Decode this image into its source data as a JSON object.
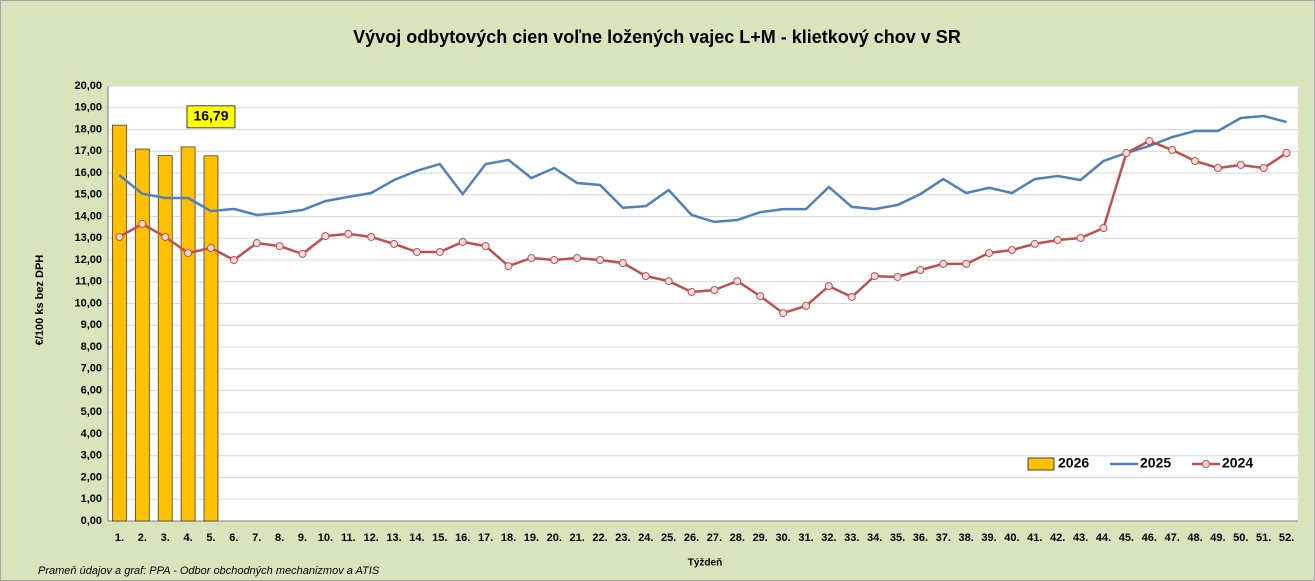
{
  "chart_data": {
    "type": "combo",
    "title": "Vývoj odbytových cien voľne ložených vajec L+M - klietkový chov v SR",
    "y_label": "€/100 ks bez DPH",
    "x_label": "Týždeň",
    "source": "Prameň údajov a graf: PPA - Odbor obchodných mechanizmov a ATIS",
    "categories": [
      "1.",
      "2.",
      "3.",
      "4.",
      "5.",
      "6.",
      "7.",
      "8.",
      "9.",
      "10.",
      "11.",
      "12.",
      "13.",
      "14.",
      "15.",
      "16.",
      "17.",
      "18.",
      "19.",
      "20.",
      "21.",
      "22.",
      "23.",
      "24.",
      "25.",
      "26.",
      "27.",
      "28.",
      "29.",
      "30.",
      "31.",
      "32.",
      "33.",
      "34.",
      "35.",
      "36.",
      "37.",
      "38.",
      "39.",
      "40.",
      "41.",
      "42.",
      "43.",
      "44.",
      "45.",
      "46.",
      "47.",
      "48.",
      "49.",
      "50.",
      "51.",
      "52."
    ],
    "ylim": [
      0,
      20
    ],
    "yticks": [
      {
        "value": 0,
        "label": "0,00"
      },
      {
        "value": 1,
        "label": "1,00"
      },
      {
        "value": 2,
        "label": "2,00"
      },
      {
        "value": 3,
        "label": "3,00"
      },
      {
        "value": 4,
        "label": "4,00"
      },
      {
        "value": 5,
        "label": "5,00"
      },
      {
        "value": 6,
        "label": "6,00"
      },
      {
        "value": 7,
        "label": "7,00"
      },
      {
        "value": 8,
        "label": "8,00"
      },
      {
        "value": 9,
        "label": "9,00"
      },
      {
        "value": 10,
        "label": "10,00"
      },
      {
        "value": 11,
        "label": "11,00"
      },
      {
        "value": 12,
        "label": "12,00"
      },
      {
        "value": 13,
        "label": "13,00"
      },
      {
        "value": 14,
        "label": "14,00"
      },
      {
        "value": 15,
        "label": "15,00"
      },
      {
        "value": 16,
        "label": "16,00"
      },
      {
        "value": 17,
        "label": "17,00"
      },
      {
        "value": 18,
        "label": "18,00"
      },
      {
        "value": 19,
        "label": "19,00"
      },
      {
        "value": 20,
        "label": "20,00"
      }
    ],
    "grid": true,
    "legend": "lower right",
    "series": [
      {
        "name": "2026",
        "type": "bar",
        "color": "#ffc000",
        "values": [
          18.2,
          17.1,
          16.8,
          17.2,
          16.79,
          null,
          null,
          null,
          null,
          null,
          null,
          null,
          null,
          null,
          null,
          null,
          null,
          null,
          null,
          null,
          null,
          null,
          null,
          null,
          null,
          null,
          null,
          null,
          null,
          null,
          null,
          null,
          null,
          null,
          null,
          null,
          null,
          null,
          null,
          null,
          null,
          null,
          null,
          null,
          null,
          null,
          null,
          null,
          null,
          null,
          null,
          null
        ],
        "value_labels": [
          null,
          null,
          null,
          null,
          "16,79",
          null,
          null,
          null,
          null,
          null,
          null,
          null,
          null,
          null,
          null,
          null,
          null,
          null,
          null,
          null,
          null,
          null,
          null,
          null,
          null,
          null,
          null,
          null,
          null,
          null,
          null,
          null,
          null,
          null,
          null,
          null,
          null,
          null,
          null,
          null,
          null,
          null,
          null,
          null,
          null,
          null,
          null,
          null,
          null,
          null,
          null,
          null
        ]
      },
      {
        "name": "2025",
        "type": "line",
        "color": "#4f81bd",
        "markers": false,
        "values": [
          15.9,
          15.05,
          14.85,
          14.85,
          14.25,
          14.35,
          14.07,
          14.16,
          14.3,
          14.71,
          14.9,
          15.08,
          15.68,
          16.1,
          16.41,
          15.03,
          16.41,
          16.6,
          15.77,
          16.23,
          15.54,
          15.45,
          14.4,
          14.48,
          15.22,
          14.07,
          13.75,
          13.84,
          14.2,
          14.34,
          14.34,
          15.36,
          14.44,
          14.34,
          14.53,
          15.03,
          15.72,
          15.08,
          15.32,
          15.08,
          15.72,
          15.86,
          15.68,
          16.55,
          16.92,
          17.24,
          17.65,
          17.93,
          17.93,
          18.53,
          18.62,
          18.34
        ]
      },
      {
        "name": "2024",
        "type": "line",
        "color": "#c0504d",
        "markers": true,
        "values": [
          13.06,
          13.66,
          13.06,
          12.32,
          12.55,
          12.0,
          12.78,
          12.64,
          12.28,
          13.1,
          13.2,
          13.06,
          12.74,
          12.37,
          12.37,
          12.83,
          12.64,
          11.72,
          12.09,
          12.0,
          12.09,
          12.0,
          11.86,
          11.26,
          11.03,
          10.53,
          10.62,
          11.03,
          10.34,
          9.56,
          9.89,
          10.8,
          10.3,
          11.26,
          11.22,
          11.54,
          11.82,
          11.82,
          12.32,
          12.46,
          12.74,
          12.92,
          13.01,
          13.47,
          16.92,
          17.47,
          17.06,
          16.55,
          16.23,
          16.37,
          16.23,
          16.92
        ]
      }
    ]
  }
}
